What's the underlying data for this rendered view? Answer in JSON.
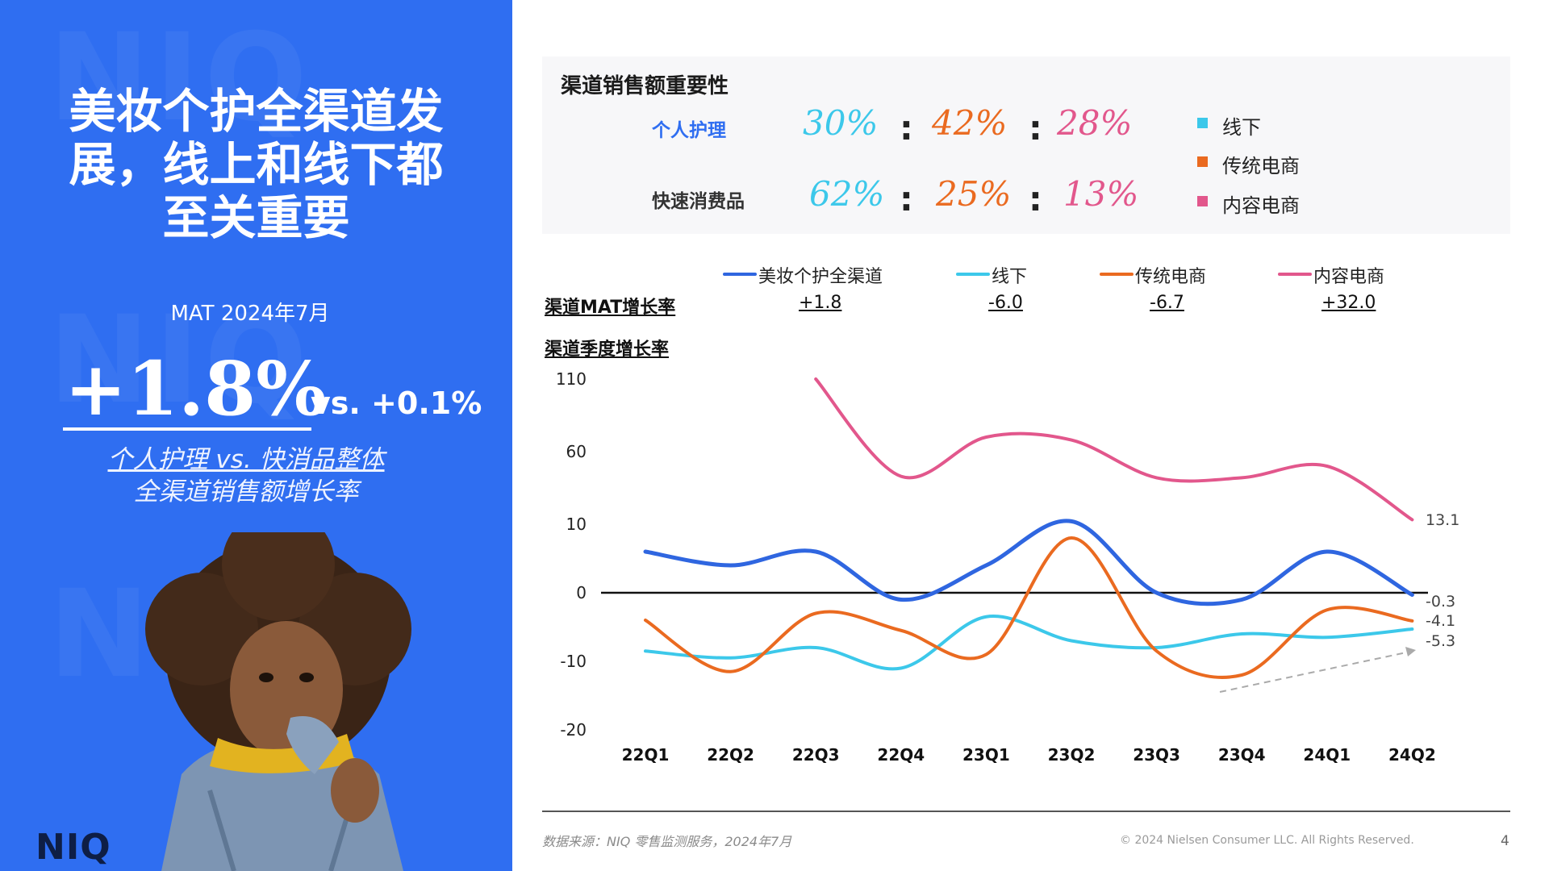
{
  "headline": [
    "美妆个护全渠道发",
    "展，线上和线下都",
    "至关重要"
  ],
  "mat_label": "MAT 2024年7月",
  "big_number": "+1.8%",
  "vs_text": "vs. +0.1%",
  "sub_text": [
    "个人护理 vs. 快消品整体",
    "全渠道销售额增长率"
  ],
  "logo": "NIQ",
  "watermark": "NIQ",
  "importance": {
    "title": "渠道销售额重要性",
    "rows": [
      {
        "label": "个人护理",
        "label_color": "#2f6ef1",
        "values": [
          "30%",
          "42%",
          "28%"
        ]
      },
      {
        "label": "快速消费品",
        "label_color": "#333333",
        "values": [
          "62%",
          "25%",
          "13%"
        ]
      }
    ],
    "colon": ":",
    "legend": [
      {
        "name": "线下",
        "color": "#3cc8ea"
      },
      {
        "name": "传统电商",
        "color": "#ea6a20"
      },
      {
        "name": "内容电商",
        "color": "#e2578c"
      }
    ]
  },
  "mat_growth": {
    "title": "渠道MAT增长率",
    "values": [
      "+1.8",
      "-6.0",
      "-6.7",
      "+32.0"
    ]
  },
  "quarter_title": "渠道季度增长率",
  "chart_data": {
    "type": "line",
    "categories": [
      "22Q1",
      "22Q2",
      "22Q3",
      "22Q4",
      "23Q1",
      "23Q2",
      "23Q3",
      "23Q4",
      "24Q1",
      "24Q2"
    ],
    "y_ticks": [
      "110",
      "60",
      "10",
      "0",
      "-10",
      "-20"
    ],
    "y_scale": "broken axis (110, 60, 10 spaced as 10-unit steps)",
    "series": [
      {
        "name": "美妆个护全渠道",
        "color": "#2f66e0",
        "values": [
          6,
          4,
          6,
          -1,
          4,
          12,
          0,
          -1,
          6,
          -0.3
        ]
      },
      {
        "name": "线下",
        "color": "#3cc8ea",
        "values": [
          -8.5,
          -9.5,
          -8,
          -11,
          -3.5,
          -7,
          -8,
          -6,
          -6.5,
          -5.3
        ]
      },
      {
        "name": "传统电商",
        "color": "#ea6a20",
        "values": [
          -4,
          -11.5,
          -3,
          -5.5,
          -9,
          8,
          -8.5,
          -12,
          -2.5,
          -4.1
        ]
      },
      {
        "name": "内容电商",
        "color": "#e2578c",
        "values": [
          null,
          null,
          110,
          43,
          70,
          68,
          42,
          42,
          50,
          13.1
        ]
      }
    ],
    "end_labels": [
      "13.1",
      "-0.3",
      "-4.1",
      "-5.3"
    ]
  },
  "footer": {
    "source": "数据来源：NIQ 零售监测服务，2024年7月",
    "copyright": "© 2024 Nielsen Consumer LLC. All Rights Reserved.",
    "page": "4"
  }
}
